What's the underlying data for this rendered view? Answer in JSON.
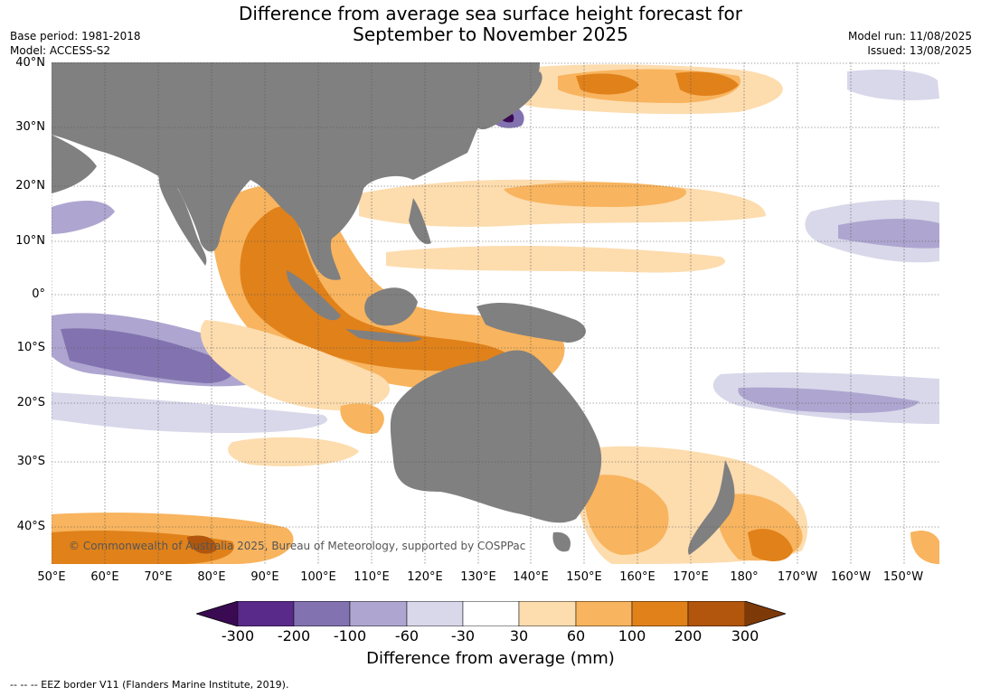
{
  "title_line1": "Difference from average sea surface height forecast for",
  "title_line2": "September to November 2025",
  "base_period": "Base period: 1981-2018",
  "model": "Model: ACCESS-S2",
  "model_run": "Model run: 11/08/2025",
  "issued": "Issued: 13/08/2025",
  "lat_labels": [
    "40°N",
    "30°N",
    "20°N",
    "10°N",
    "0°",
    "10°S",
    "20°S",
    "30°S",
    "40°S"
  ],
  "lon_labels": [
    "50°E",
    "60°E",
    "70°E",
    "80°E",
    "90°E",
    "100°E",
    "110°E",
    "120°E",
    "130°E",
    "140°E",
    "150°E",
    "160°E",
    "170°E",
    "180°",
    "170°W",
    "160°W",
    "150°W"
  ],
  "credit": "© Commonwealth of Australia 2025, Bureau of Meteorology, supported by COSPPac",
  "colorbar": {
    "labels": [
      "-300",
      "-200",
      "-100",
      "-60",
      "-30",
      "30",
      "60",
      "100",
      "200",
      "300"
    ],
    "title": "Difference from average (mm)",
    "colors": [
      "#3a0a52",
      "#5a2a8a",
      "#8273b0",
      "#aea6d0",
      "#d8d8ea",
      "#ffffff",
      "#fddcae",
      "#f8b45e",
      "#e0811a",
      "#b1560c",
      "#7d3a08"
    ]
  },
  "footnote": "--  --  -- EEZ border V11 (Flanders Marine Institute, 2019).",
  "land_color": "#808080"
}
